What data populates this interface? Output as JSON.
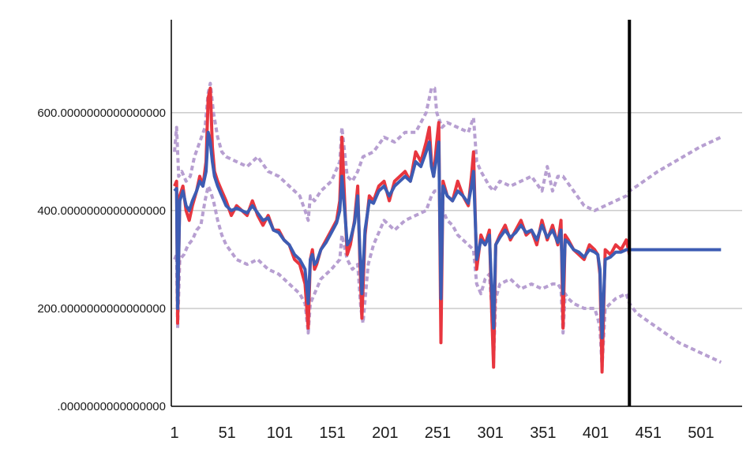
{
  "chart_data": {
    "type": "line",
    "title": "",
    "xlabel": "",
    "ylabel": "",
    "xlim": [
      -2,
      540
    ],
    "ylim": [
      0,
      790
    ],
    "grid": "horizontal",
    "y_ticks": [
      {
        "value": 0,
        "label": ".0000000000000000"
      },
      {
        "value": 200,
        "label": "200.0000000000000000"
      },
      {
        "value": 400,
        "label": "400.0000000000000000"
      },
      {
        "value": 600,
        "label": "600.0000000000000000"
      }
    ],
    "x_ticks": [
      {
        "value": 1,
        "label": "1"
      },
      {
        "value": 51,
        "label": "51"
      },
      {
        "value": 101,
        "label": "101"
      },
      {
        "value": 151,
        "label": "151"
      },
      {
        "value": 201,
        "label": "201"
      },
      {
        "value": 251,
        "label": "251"
      },
      {
        "value": 301,
        "label": "301"
      },
      {
        "value": 351,
        "label": "351"
      },
      {
        "value": 401,
        "label": "401"
      },
      {
        "value": 451,
        "label": "451"
      },
      {
        "value": 501,
        "label": "501"
      }
    ],
    "forecast_origin": 433,
    "colors": {
      "observed": "#e8363f",
      "fitted": "#3d5cb3",
      "confidence": "#b79fd1",
      "grid": "#b0b0b0",
      "axis": "#000000",
      "origin_line": "#000000"
    },
    "series": [
      {
        "key": "observed",
        "style": "line",
        "x": [
          1,
          3,
          4,
          6,
          9,
          12,
          15,
          18,
          22,
          25,
          28,
          31,
          33,
          35,
          37,
          39,
          42,
          46,
          50,
          55,
          60,
          65,
          70,
          75,
          80,
          85,
          90,
          95,
          100,
          105,
          110,
          115,
          120,
          125,
          128,
          130,
          132,
          134,
          136,
          140,
          145,
          150,
          155,
          158,
          160,
          163,
          165,
          168,
          172,
          175,
          177,
          179,
          182,
          186,
          190,
          195,
          200,
          205,
          210,
          215,
          220,
          225,
          230,
          235,
          240,
          243,
          245,
          247,
          250,
          252,
          254,
          256,
          260,
          265,
          270,
          275,
          280,
          283,
          285,
          288,
          292,
          296,
          300,
          302,
          304,
          306,
          310,
          315,
          320,
          325,
          330,
          335,
          340,
          345,
          350,
          355,
          360,
          365,
          368,
          370,
          372,
          375,
          380,
          385,
          390,
          395,
          400,
          403,
          405,
          407,
          410,
          415,
          420,
          425,
          430,
          433
        ],
        "y": [
          450,
          460,
          170,
          430,
          450,
          400,
          380,
          410,
          440,
          470,
          450,
          500,
          630,
          650,
          530,
          480,
          460,
          440,
          420,
          390,
          410,
          400,
          390,
          420,
          390,
          370,
          390,
          360,
          360,
          340,
          330,
          300,
          290,
          250,
          160,
          300,
          320,
          280,
          290,
          320,
          340,
          360,
          380,
          420,
          550,
          400,
          310,
          330,
          380,
          450,
          300,
          180,
          350,
          430,
          420,
          450,
          460,
          420,
          460,
          470,
          480,
          460,
          520,
          500,
          540,
          570,
          500,
          470,
          540,
          580,
          130,
          460,
          430,
          420,
          460,
          430,
          410,
          470,
          520,
          280,
          350,
          330,
          360,
          210,
          80,
          330,
          350,
          370,
          340,
          360,
          380,
          350,
          360,
          330,
          380,
          340,
          370,
          330,
          380,
          160,
          350,
          340,
          320,
          310,
          300,
          330,
          320,
          310,
          270,
          70,
          320,
          310,
          330,
          320,
          340,
          310
        ]
      },
      {
        "key": "fitted",
        "style": "line",
        "x": [
          1,
          3,
          4,
          6,
          9,
          12,
          15,
          18,
          22,
          25,
          28,
          31,
          33,
          35,
          37,
          39,
          42,
          46,
          50,
          55,
          60,
          65,
          70,
          75,
          80,
          85,
          90,
          95,
          100,
          105,
          110,
          115,
          120,
          125,
          128,
          130,
          132,
          134,
          136,
          140,
          145,
          150,
          155,
          158,
          160,
          163,
          165,
          168,
          172,
          175,
          177,
          179,
          182,
          186,
          190,
          195,
          200,
          205,
          210,
          215,
          220,
          225,
          230,
          235,
          240,
          243,
          245,
          247,
          250,
          252,
          254,
          256,
          260,
          265,
          270,
          275,
          280,
          283,
          285,
          288,
          292,
          296,
          300,
          302,
          304,
          306,
          310,
          315,
          320,
          325,
          330,
          335,
          340,
          345,
          350,
          355,
          360,
          365,
          368,
          370,
          372,
          375,
          380,
          385,
          390,
          395,
          400,
          403,
          405,
          407,
          410,
          415,
          420,
          425,
          430,
          433,
          440,
          460,
          480,
          500,
          520
        ],
        "y": [
          440,
          445,
          200,
          420,
          440,
          410,
          400,
          420,
          440,
          460,
          450,
          480,
          560,
          540,
          500,
          470,
          450,
          430,
          410,
          400,
          405,
          400,
          395,
          410,
          395,
          380,
          385,
          360,
          355,
          340,
          330,
          310,
          300,
          280,
          210,
          300,
          310,
          290,
          295,
          320,
          335,
          355,
          375,
          400,
          470,
          390,
          330,
          340,
          375,
          430,
          320,
          230,
          360,
          420,
          415,
          440,
          450,
          430,
          450,
          460,
          470,
          460,
          500,
          490,
          520,
          540,
          490,
          470,
          510,
          540,
          220,
          450,
          430,
          420,
          440,
          430,
          415,
          450,
          480,
          300,
          340,
          330,
          350,
          250,
          160,
          330,
          345,
          360,
          345,
          355,
          370,
          355,
          360,
          340,
          370,
          345,
          360,
          335,
          360,
          230,
          340,
          335,
          320,
          315,
          305,
          320,
          315,
          310,
          280,
          140,
          300,
          305,
          315,
          315,
          320,
          320,
          320,
          320,
          320,
          320,
          320
        ]
      },
      {
        "key": "upper_bound",
        "style": "dashed",
        "x": [
          1,
          3,
          5,
          8,
          12,
          16,
          20,
          25,
          30,
          33,
          35,
          38,
          42,
          46,
          50,
          60,
          70,
          80,
          90,
          100,
          110,
          120,
          125,
          128,
          130,
          134,
          140,
          150,
          158,
          160,
          165,
          170,
          175,
          180,
          190,
          200,
          210,
          220,
          230,
          240,
          245,
          248,
          250,
          255,
          260,
          270,
          280,
          285,
          288,
          292,
          300,
          304,
          310,
          320,
          330,
          340,
          350,
          355,
          360,
          365,
          370,
          380,
          390,
          400,
          410,
          420,
          430,
          433,
          440,
          460,
          480,
          500,
          520
        ],
        "y": [
          520,
          570,
          470,
          480,
          460,
          470,
          510,
          540,
          570,
          640,
          660,
          600,
          550,
          520,
          510,
          500,
          490,
          510,
          480,
          470,
          450,
          430,
          400,
          380,
          430,
          420,
          440,
          460,
          500,
          570,
          470,
          460,
          480,
          510,
          520,
          550,
          540,
          560,
          560,
          600,
          650,
          650,
          600,
          570,
          580,
          570,
          560,
          590,
          500,
          480,
          450,
          440,
          460,
          450,
          460,
          470,
          440,
          490,
          440,
          470,
          470,
          440,
          410,
          400,
          410,
          420,
          430,
          440,
          450,
          480,
          505,
          530,
          550
        ]
      },
      {
        "key": "lower_bound",
        "style": "dashed",
        "x": [
          1,
          3,
          4,
          6,
          10,
          14,
          18,
          22,
          26,
          30,
          33,
          35,
          38,
          42,
          46,
          50,
          60,
          70,
          80,
          90,
          100,
          110,
          120,
          125,
          128,
          130,
          134,
          140,
          150,
          158,
          160,
          165,
          170,
          175,
          178,
          180,
          185,
          190,
          200,
          210,
          220,
          230,
          240,
          245,
          248,
          250,
          252,
          254,
          256,
          260,
          265,
          270,
          280,
          285,
          288,
          292,
          296,
          300,
          302,
          304,
          306,
          310,
          320,
          330,
          340,
          350,
          360,
          365,
          368,
          370,
          372,
          375,
          380,
          390,
          400,
          403,
          405,
          407,
          410,
          420,
          430,
          433,
          440,
          460,
          480,
          500,
          520
        ],
        "y": [
          300,
          310,
          160,
          300,
          310,
          330,
          340,
          360,
          370,
          420,
          450,
          440,
          420,
          380,
          350,
          330,
          300,
          290,
          300,
          280,
          270,
          250,
          230,
          210,
          150,
          210,
          230,
          260,
          280,
          300,
          350,
          300,
          280,
          290,
          200,
          170,
          290,
          330,
          380,
          360,
          380,
          390,
          400,
          430,
          440,
          440,
          440,
          430,
          400,
          380,
          370,
          350,
          330,
          320,
          250,
          230,
          260,
          270,
          210,
          90,
          220,
          250,
          260,
          240,
          250,
          240,
          250,
          250,
          240,
          150,
          230,
          220,
          210,
          200,
          200,
          180,
          160,
          80,
          200,
          220,
          230,
          210,
          190,
          160,
          130,
          110,
          90
        ]
      }
    ]
  }
}
